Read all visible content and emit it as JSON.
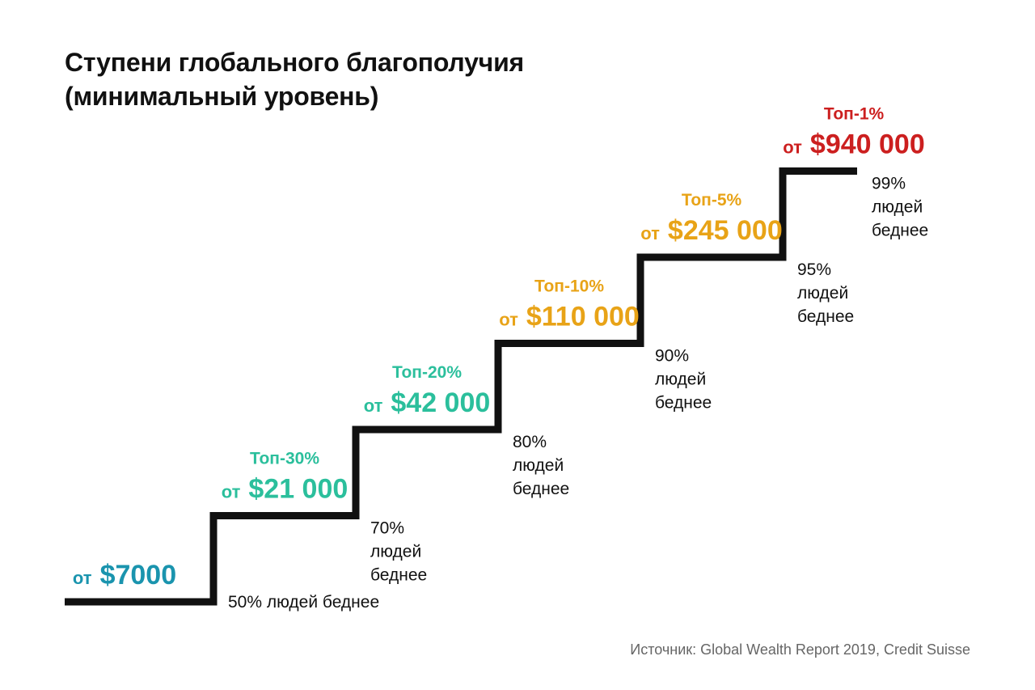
{
  "title_line1": "Ступени глобального благополучия",
  "title_line2": "(минимальный уровень)",
  "source": "Источник: Global Wealth Report 2019, Credit Suisse",
  "chart_data": {
    "type": "step",
    "title": "Ступени глобального благополучия (минимальный уровень)",
    "steps": [
      {
        "tier": "",
        "tier_value": null,
        "threshold": "$7000",
        "threshold_value": 7000,
        "poorer_text": [
          "50% людей беднее"
        ],
        "poorer_pct": 50,
        "color": "#1a94ae"
      },
      {
        "tier": "Топ-30%",
        "tier_value": 30,
        "threshold": "$21 000",
        "threshold_value": 21000,
        "poorer_text": [
          "70%",
          "людей",
          "беднее"
        ],
        "poorer_pct": 70,
        "color": "#2bbf9c"
      },
      {
        "tier": "Топ-20%",
        "tier_value": 20,
        "threshold": "$42 000",
        "threshold_value": 42000,
        "poorer_text": [
          "80%",
          "людей",
          "беднее"
        ],
        "poorer_pct": 80,
        "color": "#2bbf9c"
      },
      {
        "tier": "Топ-10%",
        "tier_value": 10,
        "threshold": "$110 000",
        "threshold_value": 110000,
        "poorer_text": [
          "90%",
          "людей",
          "беднее"
        ],
        "poorer_pct": 90,
        "color": "#e8a317"
      },
      {
        "tier": "Топ-5%",
        "tier_value": 5,
        "threshold": "$245 000",
        "threshold_value": 245000,
        "poorer_text": [
          "95%",
          "людей",
          "беднее"
        ],
        "poorer_pct": 95,
        "color": "#e8a317"
      },
      {
        "tier": "Топ-1%",
        "tier_value": 1,
        "threshold": "$940 000",
        "threshold_value": 940000,
        "poorer_text": [
          "99%",
          "людей",
          "беднее"
        ],
        "poorer_pct": 99,
        "color": "#cc1f1f"
      }
    ],
    "prefix": "от"
  }
}
